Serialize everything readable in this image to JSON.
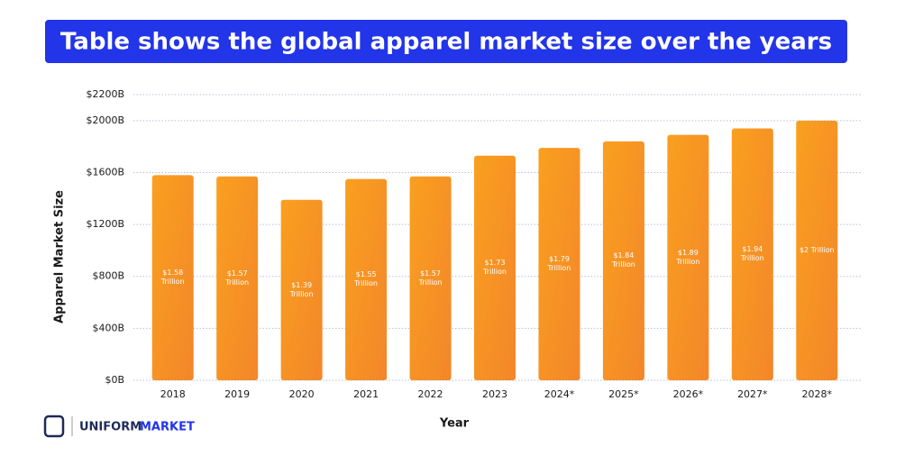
{
  "chart_data": {
    "type": "bar",
    "title": "Table shows the global apparel market size over the years",
    "x_label": "Year",
    "y_label": "Apparel Market Size",
    "categories": [
      "2018",
      "2019",
      "2020",
      "2021",
      "2022",
      "2023",
      "2024*",
      "2025*",
      "2026*",
      "2027*",
      "2028*"
    ],
    "values": [
      1580,
      1570,
      1390,
      1550,
      1570,
      1730,
      1790,
      1840,
      1890,
      1940,
      2000
    ],
    "value_labels": [
      "$1.58 Trillion",
      "$1.57 Trillion",
      "$1.39 Trillion",
      "$1.55 Trillion",
      "$1.57 Trillion",
      "$1.73 Trillion",
      "$1.79 Trillion",
      "$1.84 Trillion",
      "$1.89 Trillion",
      "$1.94 Trillion",
      "$2 Trillion"
    ],
    "color": "#f7921e",
    "ylim": [
      0,
      2200
    ],
    "yticks": [
      {
        "value": 0,
        "label": "$0B"
      },
      {
        "value": 400,
        "label": "$400B"
      },
      {
        "value": 800,
        "label": "$800B"
      },
      {
        "value": 1200,
        "label": "$1200B"
      },
      {
        "value": 1600,
        "label": "$1600B"
      },
      {
        "value": 2000,
        "label": "$2000B"
      },
      {
        "value": 2200,
        "label": "$2200B"
      }
    ],
    "grid": true
  },
  "brand": [
    "UNIFORM",
    "MARKET"
  ]
}
